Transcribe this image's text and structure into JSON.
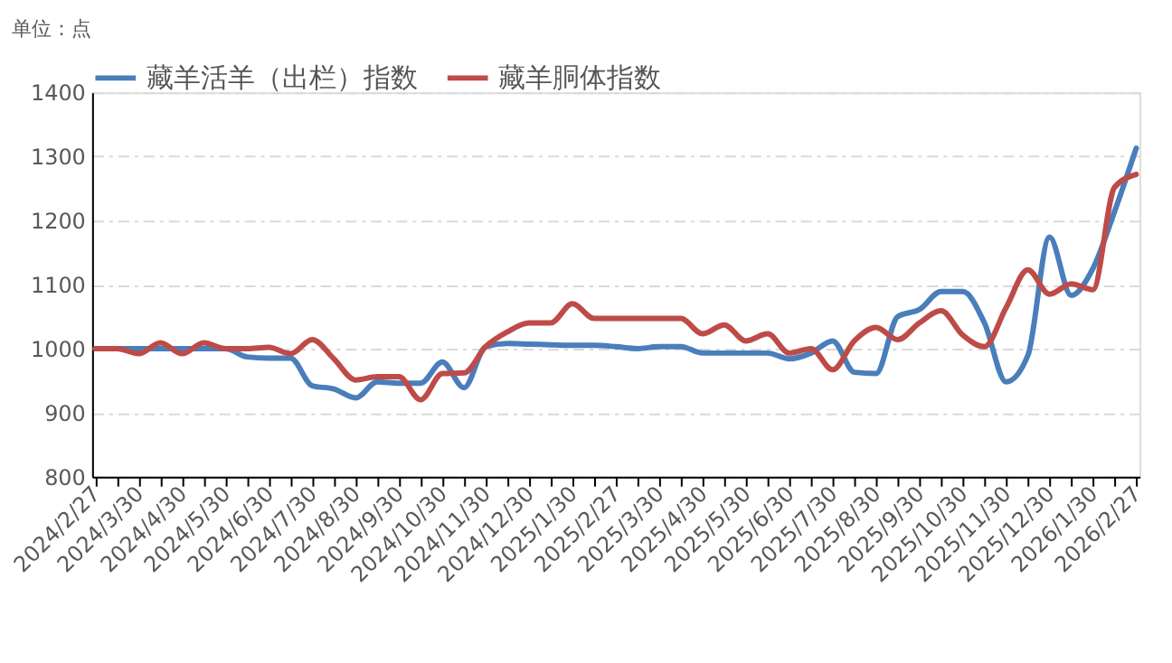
{
  "chart_data": {
    "type": "line",
    "ylabel": "单位：点",
    "categories": [
      "2024/2/27",
      null,
      "2024/3/30",
      null,
      "2024/4/30",
      null,
      "2024/5/30",
      null,
      "2024/6/30",
      null,
      "2024/7/30",
      null,
      "2024/8/30",
      null,
      "2024/9/30",
      null,
      "2024/10/30",
      null,
      "2024/11/30",
      null,
      "2024/12/30",
      null,
      "2025/1/30",
      null,
      "2025/2/27",
      null,
      "2025/3/30",
      null,
      "2025/4/30",
      null,
      "2025/5/30",
      null,
      "2025/6/30",
      null,
      "2025/7/30",
      null,
      "2025/8/30",
      null,
      "2025/9/30",
      null,
      "2025/10/30",
      null,
      "2025/11/30",
      null,
      "2025/12/30",
      null,
      "2026/1/30",
      null,
      "2026/2/27"
    ],
    "series": [
      {
        "name": "藏羊活羊（出栏）指数",
        "color": "#4a7ebb",
        "values": [
          1000,
          1000,
          1000,
          1000,
          1000,
          1000,
          1000,
          987,
          985,
          985,
          942,
          937,
          923,
          948,
          946,
          946,
          979,
          939,
          1003,
          1008,
          1007,
          1006,
          1005,
          1005,
          1003,
          1000,
          1003,
          1003,
          993,
          993,
          993,
          993,
          984,
          993,
          1012,
          963,
          961,
          1050,
          1061,
          1089,
          1089,
          1040,
          948,
          989,
          1174,
          1083,
          1125,
          1214,
          1313
        ]
      },
      {
        "name": "藏羊胴体指数",
        "color": "#be4b48",
        "values": [
          1000,
          1000,
          992,
          1009,
          992,
          1009,
          1000,
          1000,
          1002,
          992,
          1014,
          984,
          951,
          956,
          956,
          920,
          961,
          962,
          1003,
          1026,
          1040,
          1040,
          1070,
          1047,
          1047,
          1047,
          1047,
          1047,
          1023,
          1037,
          1012,
          1023,
          993,
          1000,
          967,
          1012,
          1033,
          1014,
          1040,
          1059,
          1021,
          1003,
          1064,
          1123,
          1085,
          1101,
          1092,
          1252,
          1272
        ]
      }
    ],
    "ylim": [
      800,
      1400
    ],
    "yticks": [
      800,
      900,
      1000,
      1100,
      1200,
      1300,
      1400
    ],
    "grid": "y",
    "legend": "top",
    "marker": "none",
    "line_style": "solid"
  }
}
